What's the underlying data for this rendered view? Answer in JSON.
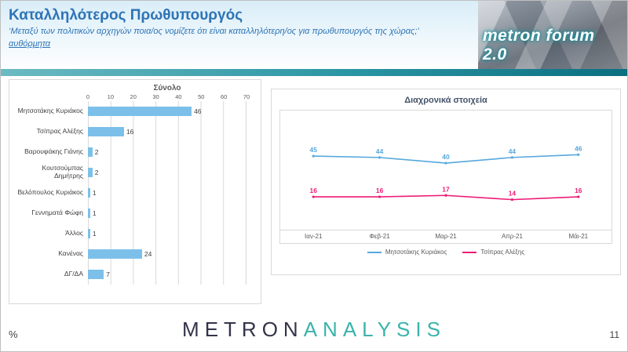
{
  "header": {
    "title": "Καταλληλότερος Πρωθυπουργός",
    "subtitle": "‘Μεταξύ των πολιτικών αρχηγών ποια/ος νομίζετε ότι είναι καταλληλότερη/ος για πρωθυπουργός της χώρας;’",
    "note": "αυθόρμητα",
    "logo_text": "metron forum 2.0"
  },
  "footer": {
    "percent_label": "%",
    "brand_primary": "METRON",
    "brand_secondary": "ANALYSIS",
    "page_number": "11"
  },
  "colors": {
    "title_blue": "#2e74b5",
    "bar_blue": "#7cc0ea",
    "line_blue": "#56a8dc",
    "line_pink": "#ec1a75",
    "brand_teal": "#3ab3ac"
  },
  "chart_data": [
    {
      "type": "bar",
      "orientation": "horizontal",
      "title": "Σύνολο",
      "categories": [
        "Μητσοτάκης Κυριάκος",
        "Τσίπρας Αλέξης",
        "Βαρουφάκης Γιάνης",
        "Κουτσούμπας Δημήτρης",
        "Βελόπουλος Κυριάκος",
        "Γεννηματά Φώφη",
        "Άλλος",
        "Κανένας",
        "ΔΓ/ΔΑ"
      ],
      "values": [
        46,
        16,
        2,
        2,
        1,
        1,
        1,
        24,
        7
      ],
      "xlim": [
        0,
        70
      ],
      "x_ticks": [
        0,
        10,
        20,
        30,
        40,
        50,
        60,
        70
      ],
      "bar_color": "#7cc0ea",
      "grid": true,
      "data_labels": true
    },
    {
      "type": "line",
      "title": "Διαχρονικά στοιχεία",
      "x": [
        "Ιαν-21",
        "Φεβ-21",
        "Μαρ-21",
        "Απρ-21",
        "Μάι-21"
      ],
      "series": [
        {
          "name": "Μητσοτάκης Κυριάκος",
          "values": [
            45,
            44,
            40,
            44,
            46
          ],
          "color": "#56a8dc"
        },
        {
          "name": "Τσίπρας Αλέξης",
          "values": [
            16,
            16,
            17,
            14,
            16
          ],
          "color": "#ec1a75"
        }
      ],
      "ylim": [
        0,
        70
      ],
      "grid": false,
      "data_labels": true,
      "legend_position": "bottom"
    }
  ]
}
